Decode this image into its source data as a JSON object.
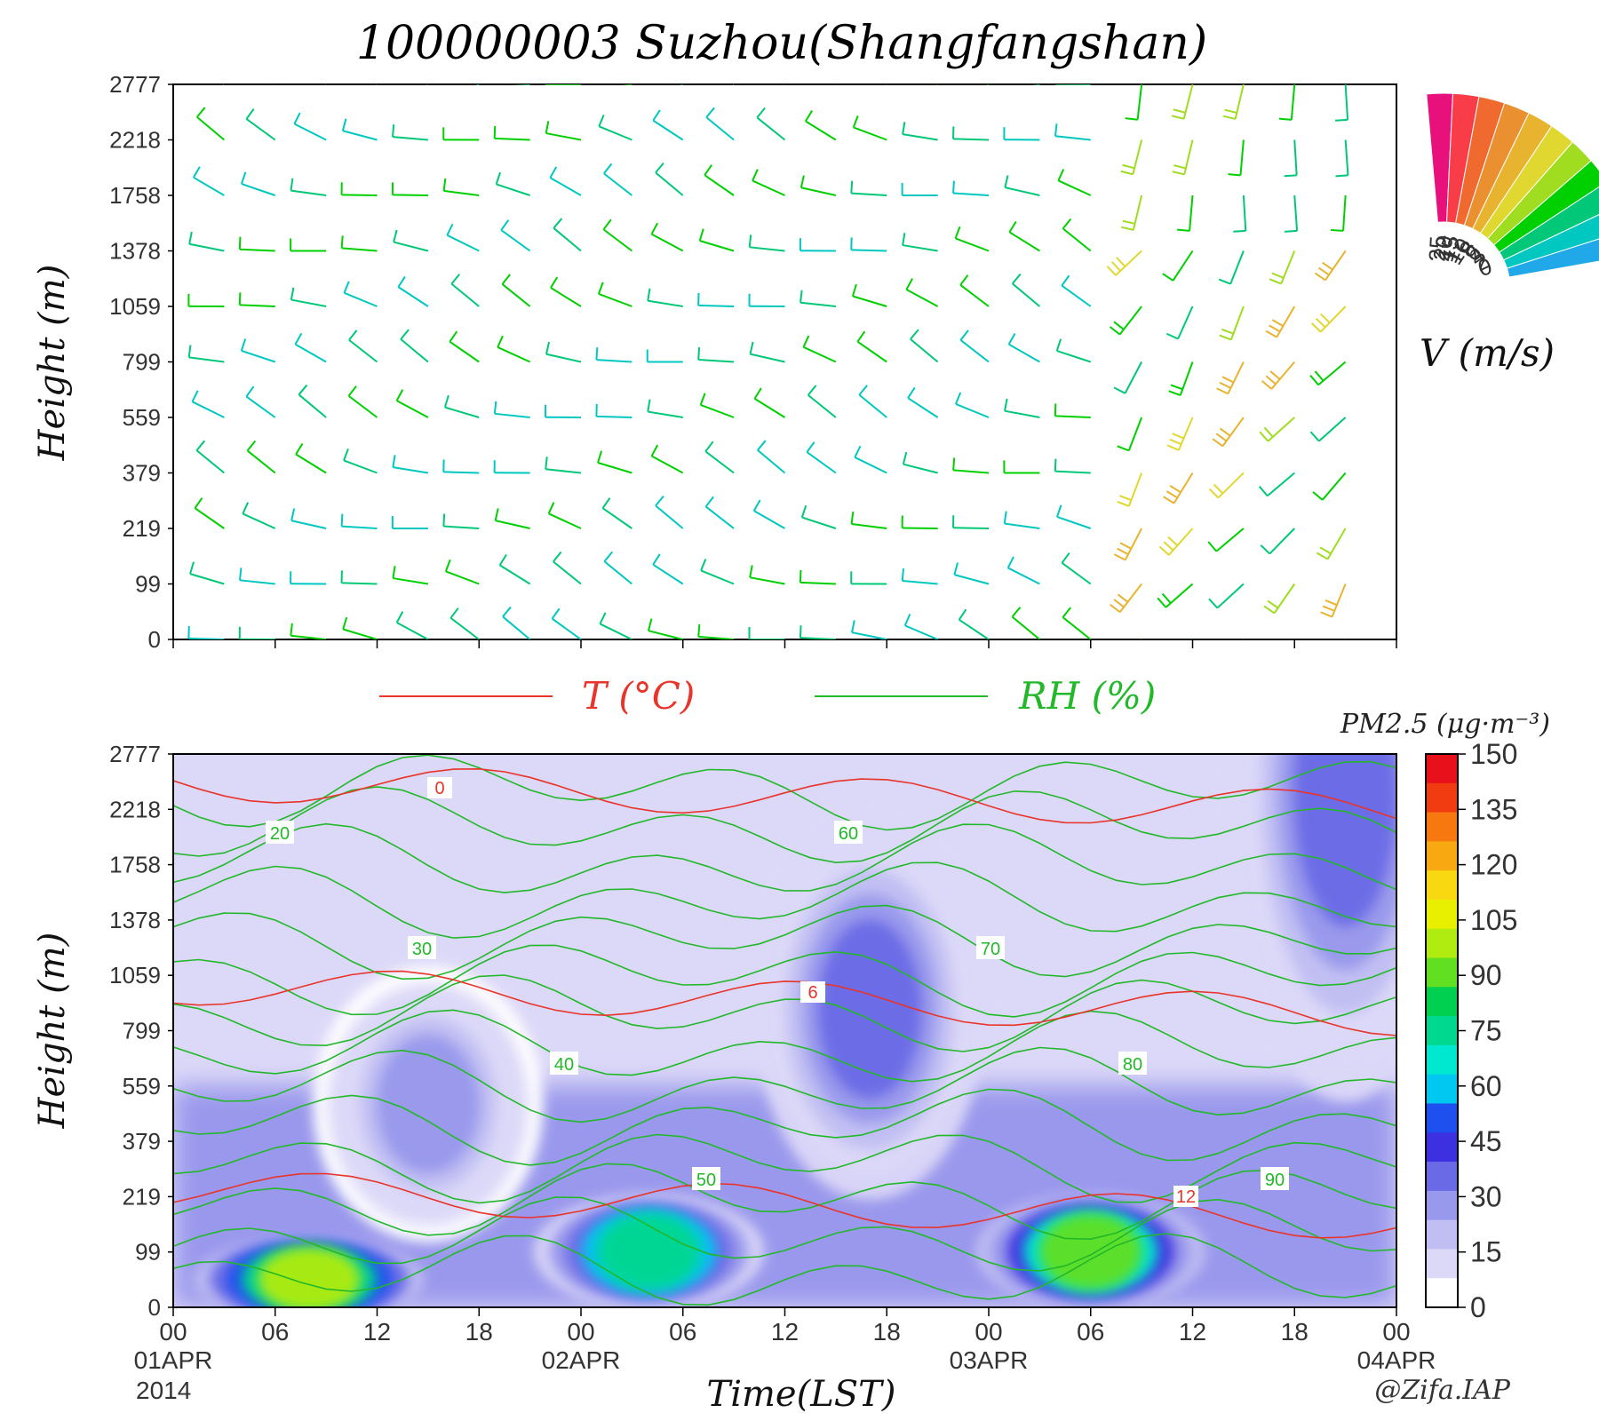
{
  "title": "100000003  Suzhou(Shangfangshan)",
  "credit": "@Zifa.IAP",
  "year": "2014",
  "x_axis": {
    "label": "Time(LST)",
    "hours": [
      "00",
      "06",
      "12",
      "18",
      "00",
      "06",
      "12",
      "18",
      "00",
      "06",
      "12",
      "18",
      "00"
    ],
    "dates": [
      "01APR",
      "02APR",
      "03APR",
      "04APR"
    ]
  },
  "y_axis": {
    "label": "Height (m)",
    "ticks": [
      "2777",
      "2218",
      "1758",
      "1378",
      "1059",
      "799",
      "559",
      "379",
      "219",
      "99",
      "0"
    ]
  },
  "legend": {
    "t_label": "T (°C)",
    "rh_label": "RH (%)",
    "t_color": "#e8342a",
    "rh_color": "#22b82a"
  },
  "wind_legend": {
    "label": "V (m/s)",
    "ticks": [
      "25",
      "20",
      "15",
      "12",
      "10",
      "8",
      "6",
      "4",
      "2",
      "0"
    ],
    "colors": [
      "#e8107a",
      "#f83c48",
      "#f06a30",
      "#ea9030",
      "#e8b430",
      "#e0d830",
      "#a0dc20",
      "#00d000",
      "#00c878",
      "#00c8c0",
      "#20a8e8"
    ]
  },
  "colorbar": {
    "title": "PM2.5 (μg·m⁻³)",
    "ticks": [
      "150",
      "135",
      "120",
      "105",
      "90",
      "75",
      "60",
      "45",
      "30",
      "15",
      "0"
    ],
    "colors": [
      "#e8101a",
      "#f03c10",
      "#f87810",
      "#f8a810",
      "#f8d810",
      "#e8f000",
      "#b0ec10",
      "#60e020",
      "#00d050",
      "#00d890",
      "#00e8d0",
      "#00c8f0",
      "#1e50f0",
      "#3c30e0",
      "#6a6ae6",
      "#9898ec",
      "#c0bef2",
      "#dcd8f8",
      "#ffffff"
    ]
  },
  "chart_data": [
    {
      "type": "wind_barbs",
      "title": "",
      "x_start": "01APR 00 LST",
      "x_end": "04APR 00 LST",
      "ylabel": "Height (m)",
      "y_levels_m": [
        0,
        99,
        219,
        379,
        559,
        799,
        1059,
        1378,
        1758,
        2218,
        2777
      ],
      "wind_speed_range_ms": [
        0,
        25
      ],
      "regimes": [
        {
          "period": "01APR 00 - 03APR 10",
          "levels": "all",
          "direction": "westerly to northwesterly",
          "speed_ms": "2-8"
        },
        {
          "period": "03APR 10 - 04APR 00",
          "levels": "0-1378 m",
          "direction": "southwesterly",
          "speed_ms": "10-15"
        },
        {
          "period": "03APR 10 - 04APR 00",
          "levels": "1378-2218 m",
          "direction": "southerly",
          "speed_ms": "6-12"
        }
      ]
    },
    {
      "type": "contour",
      "title": "",
      "xlabel": "Time(LST)",
      "ylabel": "Height (m)",
      "ylim": [
        0,
        2777
      ],
      "filled": {
        "name": "PM2.5",
        "unit": "μg·m⁻³",
        "range": [
          0,
          150
        ],
        "hotspots": [
          {
            "time": "01APR 08",
            "height_m": 50,
            "value": 100
          },
          {
            "time": "01APR 15",
            "height_m": 500,
            "value": 25
          },
          {
            "time": "02APR 04",
            "height_m": 100,
            "value": 75
          },
          {
            "time": "02APR 17",
            "height_m": 900,
            "value": 30
          },
          {
            "time": "03APR 06",
            "height_m": 100,
            "value": 90
          },
          {
            "time": "03APR 21",
            "height_m": 2400,
            "value": 30
          }
        ]
      },
      "contour_lines": [
        {
          "series": "T",
          "labels": [
            0,
            6,
            12
          ]
        },
        {
          "series": "RH",
          "labels": [
            20,
            30,
            40,
            50,
            60,
            70,
            80,
            90
          ]
        }
      ]
    }
  ]
}
